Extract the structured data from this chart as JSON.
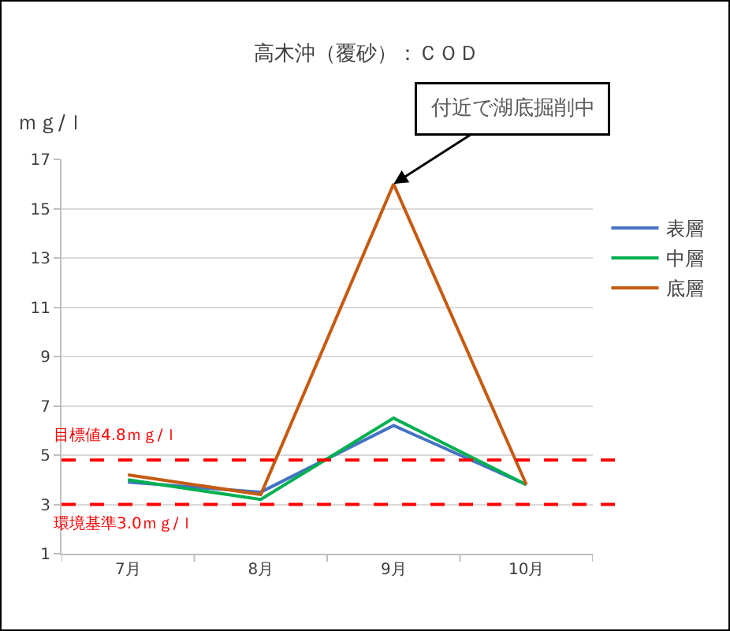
{
  "chart_data": {
    "type": "line",
    "title": "高木沖（覆砂）：ＣＯＤ",
    "ylabel": "ｍｇ/ｌ",
    "categories": [
      "7月",
      "8月",
      "9月",
      "10月"
    ],
    "series": [
      {
        "name": "表層",
        "color": "#4472c4",
        "values": [
          3.9,
          3.5,
          6.2,
          3.8
        ]
      },
      {
        "name": "中層",
        "color": "#00b050",
        "values": [
          4.0,
          3.2,
          6.5,
          3.8
        ]
      },
      {
        "name": "底層",
        "color": "#c55a11",
        "values": [
          4.2,
          3.4,
          16.0,
          3.8
        ]
      }
    ],
    "ylim": [
      1,
      17
    ],
    "yticks": [
      1,
      3,
      5,
      7,
      9,
      11,
      13,
      15,
      17
    ],
    "grid": "y",
    "legend": "right",
    "marker": "none",
    "line_style": "solid",
    "ref_lines": [
      {
        "axis": "y",
        "value": 4.8,
        "label": "目標値4.8ｍｇ/ｌ",
        "color": "#ff0000",
        "line_style": "dashed"
      },
      {
        "axis": "y",
        "value": 3.0,
        "label": "環境基準3.0ｍｇ/ｌ",
        "color": "#ff0000",
        "line_style": "dashed"
      }
    ],
    "annotations": [
      {
        "text": "付近で湖底掘削中",
        "x": "9月",
        "y": 16.0
      }
    ]
  }
}
